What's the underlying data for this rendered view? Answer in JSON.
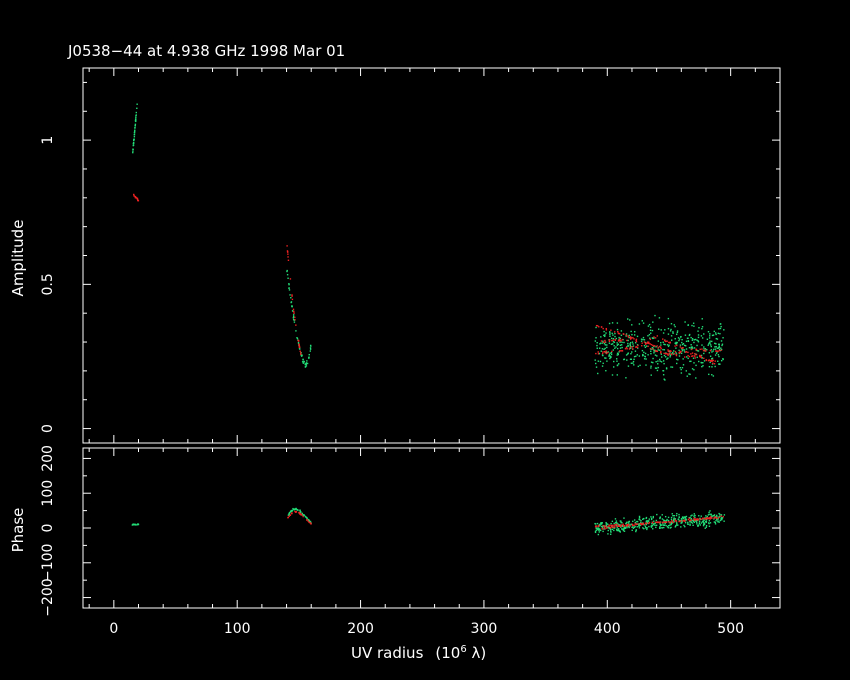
{
  "chart_data": {
    "type": "scatter",
    "title": "J0538−44 at 4.938 GHz 1998 Mar 01",
    "xlabel": "UV radius",
    "xlabel_unit": "(10",
    "xlabel_unit_exp": "6",
    "xlabel_unit_tail": " λ)",
    "xlim": [
      -25,
      540
    ],
    "x_ticks": [
      0,
      100,
      200,
      300,
      400,
      500
    ],
    "x_tick_labels": [
      "0",
      "100",
      "200",
      "300",
      "400",
      "500"
    ],
    "colors": {
      "series_a": "#22dd77",
      "series_b": "#ee2222",
      "axes": "#ffffff",
      "background": "#000000"
    },
    "panels": [
      {
        "id": "amplitude",
        "ylabel": "Amplitude",
        "ylim": [
          -0.05,
          1.25
        ],
        "y_ticks": [
          0,
          0.5,
          1
        ],
        "y_tick_labels": [
          "0",
          "0.5",
          "1"
        ],
        "series": [
          {
            "color": "green",
            "clusters": [
              {
                "x": [
                  15,
                  19
                ],
                "y": [
                  0.94,
                  1.13
                ],
                "kind": "line",
                "spread": 0.01,
                "n": 40
              },
              {
                "x": [
                  140,
                  160
                ],
                "shape": "curve",
                "points": [
                  [
                    140,
                    0.56
                  ],
                  [
                    143,
                    0.46
                  ],
                  [
                    146,
                    0.38
                  ],
                  [
                    149,
                    0.31
                  ],
                  [
                    151,
                    0.27
                  ],
                  [
                    153,
                    0.24
                  ],
                  [
                    155,
                    0.22
                  ],
                  [
                    157,
                    0.23
                  ],
                  [
                    159,
                    0.26
                  ],
                  [
                    160,
                    0.3
                  ]
                ],
                "spread": 0.01,
                "n": 70
              },
              {
                "x": [
                  390,
                  495
                ],
                "y": [
                  0.1,
                  0.52
                ],
                "kind": "cloud",
                "center": 0.28,
                "spread": 0.06,
                "n": 500
              }
            ]
          },
          {
            "color": "red",
            "clusters": [
              {
                "x": [
                  16,
                  20
                ],
                "y": [
                  0.81,
                  0.79
                ],
                "kind": "line",
                "spread": 0.004,
                "n": 15
              },
              {
                "x": [
                  140,
                  152
                ],
                "shape": "curve",
                "points": [
                  [
                    140,
                    0.65
                  ],
                  [
                    143,
                    0.52
                  ],
                  [
                    146,
                    0.4
                  ],
                  [
                    149,
                    0.32
                  ],
                  [
                    151,
                    0.27
                  ],
                  [
                    152,
                    0.25
                  ]
                ],
                "spread": 0.005,
                "n": 30
              },
              {
                "x": [
                  390,
                  495
                ],
                "kind": "tracks",
                "tracks": [
                  [
                    [
                      390,
                      0.36
                    ],
                    [
                      410,
                      0.33
                    ],
                    [
                      430,
                      0.3
                    ],
                    [
                      450,
                      0.27
                    ],
                    [
                      470,
                      0.26
                    ],
                    [
                      490,
                      0.22
                    ]
                  ],
                  [
                    [
                      390,
                      0.26
                    ],
                    [
                      410,
                      0.27
                    ],
                    [
                      430,
                      0.29
                    ],
                    [
                      440,
                      0.32
                    ],
                    [
                      460,
                      0.28
                    ],
                    [
                      480,
                      0.27
                    ],
                    [
                      495,
                      0.27
                    ]
                  ],
                  [
                    [
                      395,
                      0.3
                    ],
                    [
                      420,
                      0.31
                    ],
                    [
                      445,
                      0.26
                    ],
                    [
                      470,
                      0.25
                    ],
                    [
                      490,
                      0.23
                    ]
                  ]
                ],
                "spread": 0.006,
                "n": 200
              }
            ]
          }
        ]
      },
      {
        "id": "phase",
        "ylabel": "Phase",
        "ylim": [
          -230,
          230
        ],
        "y_ticks": [
          -200,
          -100,
          0,
          100,
          200
        ],
        "y_tick_labels": [
          "−200",
          "−100",
          "0",
          "100",
          "200"
        ],
        "series": [
          {
            "color": "green",
            "clusters": [
              {
                "x": [
                  15,
                  20
                ],
                "y": [
                  10,
                  10
                ],
                "kind": "line",
                "spread": 2,
                "n": 15
              },
              {
                "x": [
                  140,
                  160
                ],
                "shape": "curve",
                "points": [
                  [
                    141,
                    35
                  ],
                  [
                    144,
                    50
                  ],
                  [
                    147,
                    55
                  ],
                  [
                    150,
                    50
                  ],
                  [
                    153,
                    40
                  ],
                  [
                    156,
                    30
                  ],
                  [
                    159,
                    18
                  ],
                  [
                    160,
                    15
                  ]
                ],
                "spread": 4,
                "n": 60
              },
              {
                "x": [
                  390,
                  495
                ],
                "y": [
                  -40,
                  60
                ],
                "kind": "cloud",
                "trend": [
                  [
                    390,
                    0
                  ],
                  [
                    495,
                    30
                  ]
                ],
                "spread": 14,
                "n": 450
              }
            ]
          },
          {
            "color": "red",
            "clusters": [
              {
                "x": [
                  140,
                  160
                ],
                "shape": "curve",
                "points": [
                  [
                    141,
                    30
                  ],
                  [
                    144,
                    42
                  ],
                  [
                    147,
                    47
                  ],
                  [
                    150,
                    44
                  ],
                  [
                    153,
                    35
                  ],
                  [
                    156,
                    25
                  ],
                  [
                    159,
                    15
                  ],
                  [
                    160,
                    12
                  ]
                ],
                "spread": 2,
                "n": 35
              },
              {
                "x": [
                  390,
                  495
                ],
                "kind": "tracks",
                "tracks": [
                  [
                    [
                      390,
                      5
                    ],
                    [
                      420,
                      10
                    ],
                    [
                      450,
                      18
                    ],
                    [
                      475,
                      28
                    ],
                    [
                      495,
                      32
                    ]
                  ],
                  [
                    [
                      395,
                      -2
                    ],
                    [
                      430,
                      12
                    ],
                    [
                      460,
                      20
                    ],
                    [
                      490,
                      30
                    ]
                  ]
                ],
                "spread": 3,
                "n": 150
              }
            ]
          }
        ]
      }
    ]
  }
}
